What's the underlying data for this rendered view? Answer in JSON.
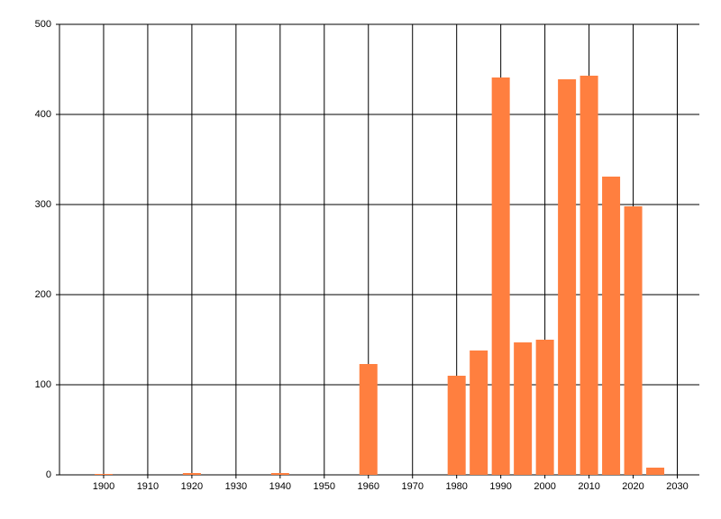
{
  "chart_data": {
    "type": "bar",
    "x": [
      1900,
      1920,
      1940,
      1960,
      1980,
      1985,
      1990,
      1995,
      2000,
      2005,
      2010,
      2015,
      2020,
      2025
    ],
    "values": [
      1,
      2,
      2,
      123,
      110,
      138,
      441,
      147,
      150,
      439,
      443,
      331,
      298,
      8
    ],
    "color": "#ff7f3f",
    "xlim": [
      1890,
      2035
    ],
    "xticks": [
      1900,
      1910,
      1920,
      1930,
      1940,
      1950,
      1960,
      1970,
      1980,
      1990,
      2000,
      2010,
      2020,
      2030
    ],
    "ylim": [
      0,
      500
    ],
    "yticks": [
      0,
      100,
      200,
      300,
      400,
      500
    ],
    "grid": true
  }
}
